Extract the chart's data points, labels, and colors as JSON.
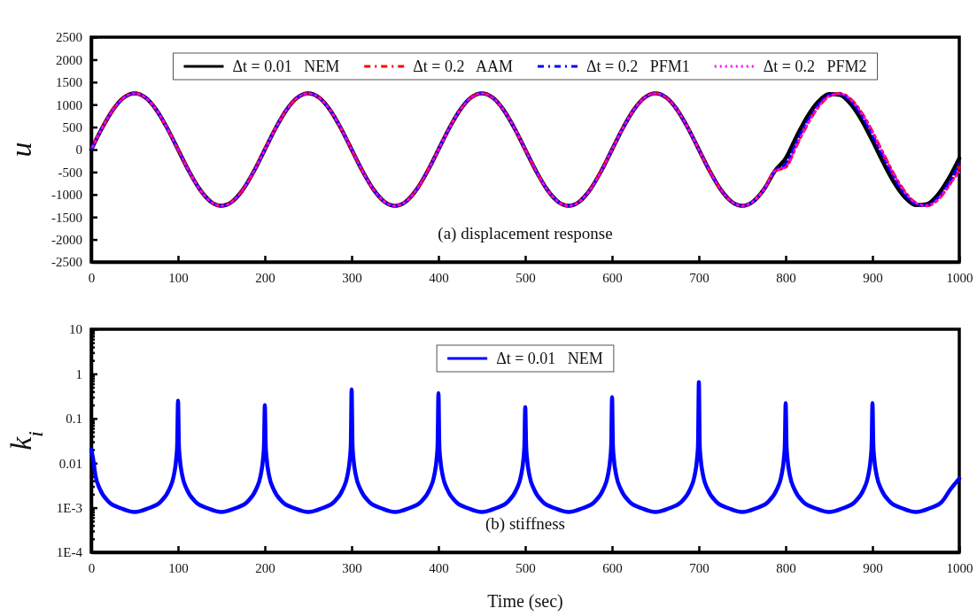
{
  "chart_data": [
    {
      "type": "line",
      "ylabel": "u",
      "annotations": [
        "(a)  displacement response"
      ],
      "legend": "top",
      "xlim": [
        0,
        1000
      ],
      "xticks": [
        0,
        100,
        200,
        300,
        400,
        500,
        600,
        700,
        800,
        900,
        1000
      ],
      "ylim": [
        -2500,
        2500
      ],
      "yticks": [
        -2500,
        -2000,
        -1500,
        -1000,
        -500,
        0,
        500,
        1000,
        1500,
        2000,
        2500
      ],
      "x": [
        0,
        12.5,
        25,
        37.5,
        50,
        62.5,
        75,
        87.5,
        100,
        112.5,
        125,
        137.5,
        150,
        162.5,
        175,
        187.5,
        200,
        212.5,
        225,
        237.5,
        250,
        262.5,
        275,
        287.5,
        300,
        312.5,
        325,
        337.5,
        350,
        362.5,
        375,
        387.5,
        400,
        412.5,
        425,
        437.5,
        450,
        462.5,
        475,
        487.5,
        500,
        512.5,
        525,
        537.5,
        550,
        562.5,
        575,
        587.5,
        600,
        612.5,
        625,
        637.5,
        650,
        662.5,
        675,
        687.5,
        700,
        712.5,
        725,
        737.5,
        750,
        762.5,
        775,
        787.5,
        800,
        812.5,
        825,
        837.5,
        850,
        862.5,
        875,
        887.5,
        900,
        912.5,
        925,
        937.5,
        950,
        962.5,
        975,
        987.5,
        1000
      ],
      "series": [
        {
          "name": "Δt = 0.01   NEM",
          "color": "#000000",
          "line_style": "solid",
          "values": [
            0,
            478,
            884,
            1155,
            1250,
            1155,
            884,
            478,
            0,
            -478,
            -884,
            -1155,
            -1250,
            -1155,
            -884,
            -478,
            0,
            478,
            884,
            1155,
            1250,
            1155,
            884,
            478,
            0,
            -478,
            -884,
            -1155,
            -1250,
            -1155,
            -884,
            -478,
            0,
            478,
            884,
            1155,
            1250,
            1155,
            884,
            478,
            0,
            -478,
            -884,
            -1155,
            -1250,
            -1155,
            -884,
            -478,
            0,
            478,
            884,
            1155,
            1250,
            1155,
            884,
            478,
            0,
            -478,
            -884,
            -1155,
            -1250,
            -1155,
            -884,
            -478,
            -196,
            292,
            735,
            1066,
            1235,
            1215,
            1011,
            653,
            196,
            -292,
            -735,
            -1066,
            -1235,
            -1215,
            -1011,
            -653,
            -196
          ]
        },
        {
          "name": "Δt = 0.2   AAM",
          "color": "#ff0000",
          "line_style": "dashed",
          "values": [
            0,
            478,
            884,
            1155,
            1250,
            1155,
            884,
            478,
            0,
            -478,
            -884,
            -1155,
            -1250,
            -1155,
            -884,
            -478,
            0,
            478,
            884,
            1155,
            1250,
            1155,
            884,
            478,
            0,
            -478,
            -884,
            -1155,
            -1250,
            -1155,
            -884,
            -478,
            0,
            478,
            884,
            1155,
            1250,
            1155,
            884,
            478,
            0,
            -478,
            -884,
            -1155,
            -1250,
            -1155,
            -884,
            -478,
            0,
            478,
            884,
            1155,
            1250,
            1155,
            884,
            478,
            0,
            -478,
            -884,
            -1155,
            -1250,
            -1155,
            -884,
            -478,
            -386,
            98,
            567,
            950,
            1189,
            1246,
            1114,
            812,
            386,
            -98,
            -567,
            -950,
            -1189,
            -1246,
            -1114,
            -812,
            -386
          ]
        },
        {
          "name": "Δt = 0.2   PFM1",
          "color": "#0000ff",
          "line_style": "dashed",
          "values": [
            0,
            478,
            884,
            1155,
            1250,
            1155,
            884,
            478,
            0,
            -478,
            -884,
            -1155,
            -1250,
            -1155,
            -884,
            -478,
            0,
            478,
            884,
            1155,
            1250,
            1155,
            884,
            478,
            0,
            -478,
            -884,
            -1155,
            -1250,
            -1155,
            -884,
            -478,
            0,
            478,
            884,
            1155,
            1250,
            1155,
            884,
            478,
            0,
            -478,
            -884,
            -1155,
            -1250,
            -1155,
            -884,
            -478,
            0,
            478,
            884,
            1155,
            1250,
            1155,
            884,
            478,
            0,
            -478,
            -884,
            -1155,
            -1250,
            -1155,
            -884,
            -478,
            -311,
            176,
            636,
            1000,
            1211,
            1238,
            1076,
            750,
            311,
            -176,
            -636,
            -1000,
            -1211,
            -1238,
            -1076,
            -750,
            -311
          ]
        },
        {
          "name": "Δt = 0.2   PFM2",
          "color": "#ff00ff",
          "line_style": "dotted",
          "values": [
            0,
            478,
            884,
            1155,
            1250,
            1155,
            884,
            478,
            0,
            -478,
            -884,
            -1155,
            -1250,
            -1155,
            -884,
            -478,
            0,
            478,
            884,
            1155,
            1250,
            1155,
            884,
            478,
            0,
            -478,
            -884,
            -1155,
            -1250,
            -1155,
            -884,
            -478,
            0,
            478,
            884,
            1155,
            1250,
            1155,
            884,
            478,
            0,
            -478,
            -884,
            -1155,
            -1250,
            -1155,
            -884,
            -478,
            0,
            478,
            884,
            1155,
            1250,
            1155,
            884,
            478,
            0,
            -478,
            -884,
            -1155,
            -1250,
            -1155,
            -884,
            -478,
            -386,
            98,
            567,
            950,
            1189,
            1246,
            1114,
            812,
            386,
            -98,
            -567,
            -950,
            -1189,
            -1246,
            -1114,
            -812,
            -500
          ]
        }
      ]
    },
    {
      "type": "line",
      "xlabel": "Time  (sec)",
      "ylabel": "k$_{i}$",
      "annotations": [
        "(b)  stiffness"
      ],
      "legend": "top",
      "line_style": "solid",
      "log": "y",
      "xlim": [
        0,
        1000
      ],
      "xticks": [
        0,
        100,
        200,
        300,
        400,
        500,
        600,
        700,
        800,
        900,
        1000
      ],
      "ylim": [
        0.0001,
        10
      ],
      "yticks": [
        {
          "value": 0.0001,
          "label": "1E-4"
        },
        {
          "value": 0.0002,
          "label": null
        },
        {
          "value": 0.0003,
          "label": null
        },
        {
          "value": 0.0004,
          "label": null
        },
        {
          "value": 0.0005,
          "label": null
        },
        {
          "value": 0.0006,
          "label": null
        },
        {
          "value": 0.0007,
          "label": null
        },
        {
          "value": 0.0008,
          "label": null
        },
        {
          "value": 0.0009,
          "label": null
        },
        {
          "value": 0.001,
          "label": "1E-3"
        },
        {
          "value": 0.002,
          "label": null
        },
        {
          "value": 0.003,
          "label": null
        },
        {
          "value": 0.004,
          "label": null
        },
        {
          "value": 0.005,
          "label": null
        },
        {
          "value": 0.006,
          "label": null
        },
        {
          "value": 0.007,
          "label": null
        },
        {
          "value": 0.008,
          "label": null
        },
        {
          "value": 0.009,
          "label": null
        },
        0.01,
        {
          "value": 0.02,
          "label": null
        },
        {
          "value": 0.03,
          "label": null
        },
        {
          "value": 0.04,
          "label": null
        },
        {
          "value": 0.05,
          "label": null
        },
        {
          "value": 0.06,
          "label": null
        },
        {
          "value": 0.07,
          "label": null
        },
        {
          "value": 0.08,
          "label": null
        },
        {
          "value": 0.09,
          "label": null
        },
        0.1,
        {
          "value": 0.2,
          "label": null
        },
        {
          "value": 0.3,
          "label": null
        },
        {
          "value": 0.4,
          "label": null
        },
        {
          "value": 0.5,
          "label": null
        },
        {
          "value": 0.6,
          "label": null
        },
        {
          "value": 0.7,
          "label": null
        },
        {
          "value": 0.8,
          "label": null
        },
        {
          "value": 0.9,
          "label": null
        },
        1,
        {
          "value": 2,
          "label": null
        },
        {
          "value": 3,
          "label": null
        },
        {
          "value": 4,
          "label": null
        },
        {
          "value": 5,
          "label": null
        },
        {
          "value": 6,
          "label": null
        },
        {
          "value": 7,
          "label": null
        },
        {
          "value": 8,
          "label": null
        },
        {
          "value": 9,
          "label": null
        },
        10
      ],
      "x": [
        0,
        2,
        5,
        10,
        20,
        35,
        50,
        65,
        80,
        90,
        95,
        98,
        99,
        100,
        101,
        102,
        105,
        110,
        120,
        135,
        150,
        165,
        180,
        190,
        195,
        198,
        199,
        200,
        201,
        202,
        205,
        210,
        220,
        235,
        250,
        265,
        280,
        290,
        295,
        298,
        299,
        300,
        301,
        302,
        305,
        310,
        320,
        335,
        350,
        365,
        380,
        390,
        395,
        398,
        399,
        400,
        401,
        402,
        405,
        410,
        420,
        435,
        450,
        465,
        480,
        490,
        495,
        498,
        499,
        500,
        501,
        502,
        505,
        510,
        520,
        535,
        550,
        565,
        580,
        590,
        595,
        598,
        599,
        600,
        601,
        602,
        605,
        610,
        620,
        635,
        650,
        665,
        680,
        690,
        695,
        698,
        699,
        700,
        701,
        702,
        705,
        710,
        720,
        735,
        750,
        765,
        780,
        790,
        795,
        798,
        799,
        800,
        801,
        802,
        805,
        810,
        820,
        835,
        850,
        865,
        880,
        890,
        895,
        898,
        899,
        900,
        901,
        902,
        905,
        910,
        920,
        935,
        950,
        965,
        980,
        990,
        1000
      ],
      "series": [
        {
          "name": "Δt = 0.01   NEM",
          "color": "#0000ff",
          "values": [
            0.02,
            0.013,
            0.0051,
            0.0026,
            0.00136,
            0.00096,
            0.0008,
            0.00096,
            0.00136,
            0.0026,
            0.0051,
            0.013,
            0.025,
            0.25,
            0.025,
            0.013,
            0.0051,
            0.0026,
            0.00136,
            0.00096,
            0.0008,
            0.00096,
            0.00136,
            0.0026,
            0.0051,
            0.013,
            0.025,
            0.2,
            0.025,
            0.013,
            0.0051,
            0.0026,
            0.00136,
            0.00096,
            0.0008,
            0.00096,
            0.00136,
            0.0026,
            0.0051,
            0.013,
            0.025,
            0.45,
            0.025,
            0.013,
            0.0051,
            0.0026,
            0.00136,
            0.00096,
            0.0008,
            0.00096,
            0.00136,
            0.0026,
            0.0051,
            0.013,
            0.025,
            0.37,
            0.025,
            0.013,
            0.0051,
            0.0026,
            0.00136,
            0.00096,
            0.0008,
            0.00096,
            0.00136,
            0.0026,
            0.0051,
            0.013,
            0.025,
            0.18,
            0.025,
            0.013,
            0.0051,
            0.0026,
            0.00136,
            0.00096,
            0.0008,
            0.00096,
            0.00136,
            0.0026,
            0.0051,
            0.013,
            0.025,
            0.3,
            0.025,
            0.013,
            0.0051,
            0.0026,
            0.00136,
            0.00096,
            0.0008,
            0.00096,
            0.00136,
            0.0026,
            0.0051,
            0.013,
            0.025,
            0.65,
            0.025,
            0.013,
            0.0051,
            0.0026,
            0.00136,
            0.00096,
            0.0008,
            0.00096,
            0.00136,
            0.0026,
            0.0051,
            0.013,
            0.025,
            0.22,
            0.025,
            0.013,
            0.0051,
            0.0026,
            0.00136,
            0.00096,
            0.0008,
            0.00096,
            0.00136,
            0.0026,
            0.0051,
            0.013,
            0.025,
            0.22,
            0.025,
            0.013,
            0.0051,
            0.0026,
            0.00136,
            0.00096,
            0.0008,
            0.00096,
            0.00136,
            0.0026,
            0.0045
          ]
        }
      ]
    }
  ]
}
